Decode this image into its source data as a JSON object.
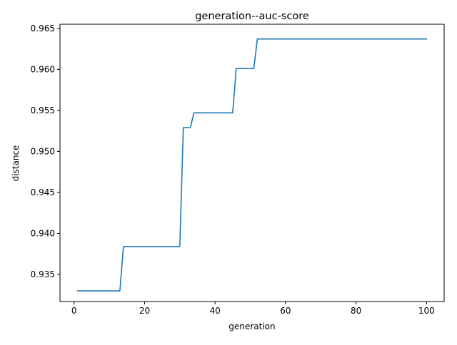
{
  "chart_data": {
    "type": "line",
    "title": "generation--auc-score",
    "xlabel": "generation",
    "ylabel": "distance",
    "xlim": [
      -4,
      105
    ],
    "ylim": [
      0.9317,
      0.9655
    ],
    "xticks": [
      0,
      20,
      40,
      60,
      80,
      100
    ],
    "xtick_labels": [
      "0",
      "20",
      "40",
      "60",
      "80",
      "100"
    ],
    "yticks": [
      0.935,
      0.94,
      0.945,
      0.95,
      0.955,
      0.96,
      0.965
    ],
    "ytick_labels": [
      "0.935",
      "0.940",
      "0.945",
      "0.950",
      "0.955",
      "0.960",
      "0.965"
    ],
    "grid": false,
    "legend": "none",
    "series": [
      {
        "color": "#1f77b4",
        "x": [
          1,
          13,
          14,
          30,
          31,
          33,
          34,
          45,
          46,
          51,
          52,
          100
        ],
        "y": [
          0.933,
          0.933,
          0.9384,
          0.9384,
          0.9529,
          0.9529,
          0.9547,
          0.9547,
          0.9601,
          0.9601,
          0.9637,
          0.9637
        ]
      }
    ]
  }
}
